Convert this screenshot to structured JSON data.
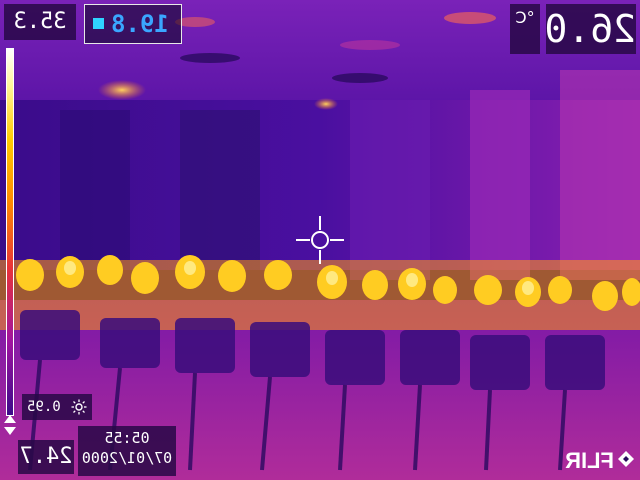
{
  "readings": {
    "max": "35.3",
    "min": "24.7",
    "spot": "19.8",
    "center": "26.0",
    "unit": "°C",
    "emissivity": "0.95"
  },
  "timestamp": {
    "time": "05:55",
    "date": "07/01/2000"
  },
  "brand": "FLIR",
  "icons": {
    "spot": "spot-marker-square-icon",
    "emissivity": "sun-icon",
    "crosshair": "crosshair-icon",
    "scale_adjust": "up-down-arrows-icon"
  },
  "palette": {
    "hot": "#ffe36a",
    "warm": "#ff8a00",
    "mid": "#a014a0",
    "cool": "#3c0b8a",
    "spot_text": "#3aa6ff",
    "spot_marker": "#2fd3ff"
  }
}
